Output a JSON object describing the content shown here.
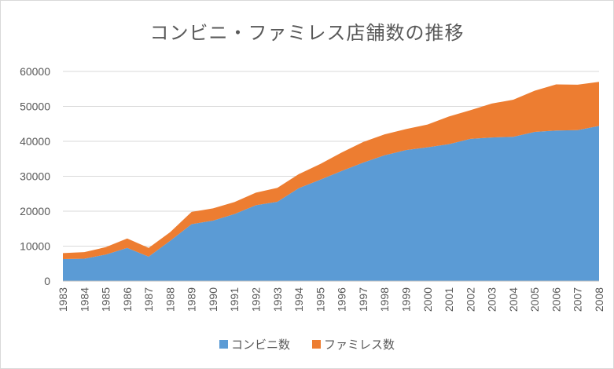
{
  "chart_data": {
    "type": "area",
    "stacked": true,
    "title": "コンビニ・ファミレス店舗数の推移",
    "xlabel": "",
    "ylabel": "",
    "x": [
      "1983",
      "1984",
      "1985",
      "1986",
      "1987",
      "1988",
      "1989",
      "1990",
      "1991",
      "1992",
      "1993",
      "1994",
      "1995",
      "1996",
      "1997",
      "1998",
      "1999",
      "2000",
      "2001",
      "2002",
      "2003",
      "2004",
      "2005",
      "2006",
      "2007",
      "2008"
    ],
    "ylim": [
      0,
      60000
    ],
    "yticks": [
      "0",
      "10000",
      "20000",
      "30000",
      "40000",
      "50000",
      "60000"
    ],
    "grid": true,
    "legend_position": "bottom",
    "series": [
      {
        "name": "コンビニ数",
        "color": "#5b9bd5",
        "values": [
          6300,
          6400,
          7600,
          9500,
          7000,
          11500,
          16300,
          17300,
          19200,
          21700,
          22700,
          26600,
          29000,
          31500,
          33900,
          36000,
          37500,
          38300,
          39200,
          40700,
          41100,
          41300,
          42700,
          43100,
          43200,
          44400
        ]
      },
      {
        "name": "ファミレス数",
        "color": "#ed7d31",
        "values": [
          1700,
          1900,
          2100,
          2700,
          2500,
          2500,
          3500,
          3500,
          3400,
          3600,
          4000,
          4000,
          4500,
          5300,
          5900,
          6000,
          6000,
          6500,
          7900,
          8200,
          9700,
          10600,
          11800,
          13200,
          13000,
          12600
        ]
      }
    ]
  }
}
